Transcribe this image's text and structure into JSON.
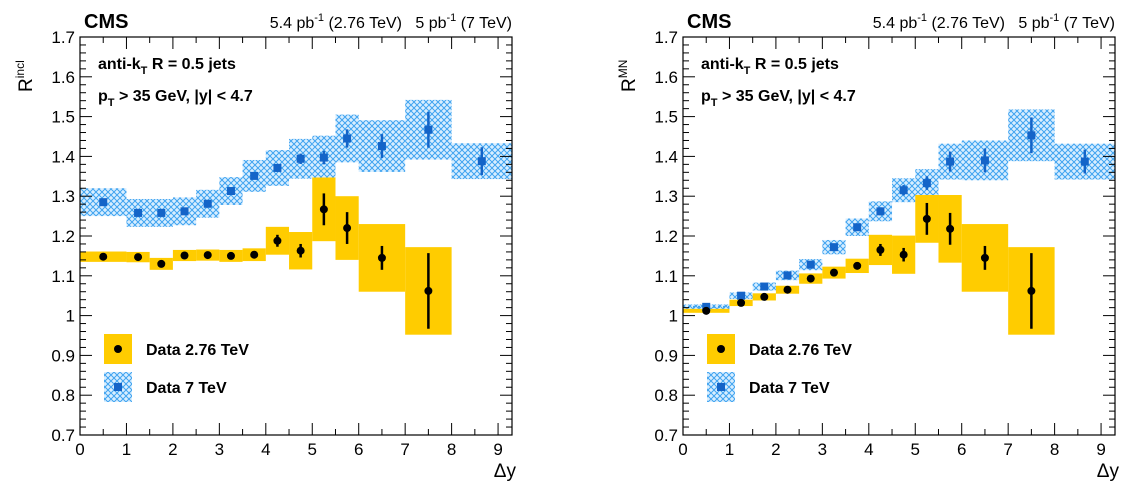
{
  "xlabel": "Δy",
  "colors": {
    "band_276": "#ffcc00",
    "band_7": "#9fd3ff",
    "marker_276": "#000000",
    "marker_7": "#1464c8"
  },
  "chart_data": [
    {
      "type": "scatter",
      "panel": "left",
      "experiment": "CMS",
      "lumi_276": "5.4 pb",
      "energy_276": "(2.76 TeV)",
      "lumi_7": "5 pb",
      "energy_7": "(7 TeV)",
      "lumi_sup": "-1",
      "ylabel_main": "R",
      "ylabel_sup": "incl",
      "annotation1_main": "anti-k",
      "annotation1_sub": "T",
      "annotation1_rest": " R = 0.5 jets",
      "annotation2_main": "p",
      "annotation2_sub": "T",
      "annotation2_rest": " > 35 GeV, |y| < 4.7",
      "xlim": [
        0,
        9.3
      ],
      "ylim": [
        0.7,
        1.7
      ],
      "xticks": [
        0,
        1,
        2,
        3,
        4,
        5,
        6,
        7,
        8,
        9
      ],
      "yticks": [
        0.7,
        0.8,
        0.9,
        1,
        1.1,
        1.2,
        1.3,
        1.4,
        1.5,
        1.6,
        1.7
      ],
      "legend": {
        "position": "bottom-left",
        "entries": [
          "Data 2.76 TeV",
          "Data 7 TeV"
        ]
      },
      "series": [
        {
          "name": "Data 2.76 TeV",
          "marker": "circle",
          "x": [
            0.5,
            1.25,
            1.75,
            2.25,
            2.75,
            3.25,
            3.75,
            4.25,
            4.75,
            5.25,
            5.75,
            6.5,
            7.5
          ],
          "xlo": [
            0,
            1,
            1.5,
            2,
            2.5,
            3,
            3.5,
            4,
            4.5,
            5,
            5.5,
            6,
            7
          ],
          "xhi": [
            1,
            1.5,
            2,
            2.5,
            3,
            3.5,
            4,
            4.5,
            5,
            5.5,
            6,
            7,
            8
          ],
          "y": [
            1.148,
            1.147,
            1.13,
            1.151,
            1.152,
            1.15,
            1.153,
            1.188,
            1.163,
            1.267,
            1.22,
            1.145,
            1.062
          ],
          "stat": [
            0.005,
            0.005,
            0.006,
            0.006,
            0.007,
            0.008,
            0.009,
            0.015,
            0.017,
            0.04,
            0.04,
            0.03,
            0.095
          ],
          "sys": [
            0.013,
            0.013,
            0.015,
            0.014,
            0.014,
            0.015,
            0.016,
            0.035,
            0.047,
            0.08,
            0.08,
            0.085,
            0.11
          ]
        },
        {
          "name": "Data 7 TeV",
          "marker": "square",
          "x": [
            0.5,
            1.25,
            1.75,
            2.25,
            2.75,
            3.25,
            3.75,
            4.25,
            4.75,
            5.25,
            5.75,
            6.5,
            7.5,
            8.65
          ],
          "xlo": [
            0,
            1,
            1.5,
            2,
            2.5,
            3,
            3.5,
            4,
            4.5,
            5,
            5.5,
            6,
            7,
            8
          ],
          "xhi": [
            1,
            1.5,
            2,
            2.5,
            3,
            3.5,
            4,
            4.5,
            5,
            5.5,
            6,
            7,
            8,
            9.3
          ],
          "y": [
            1.285,
            1.258,
            1.258,
            1.262,
            1.281,
            1.313,
            1.351,
            1.371,
            1.394,
            1.397,
            1.445,
            1.426,
            1.467,
            1.388
          ],
          "stat": [
            0.003,
            0.003,
            0.003,
            0.004,
            0.005,
            0.006,
            0.008,
            0.01,
            0.013,
            0.017,
            0.023,
            0.03,
            0.045,
            0.035
          ],
          "sys": [
            0.035,
            0.035,
            0.035,
            0.035,
            0.035,
            0.035,
            0.04,
            0.045,
            0.05,
            0.055,
            0.06,
            0.065,
            0.075,
            0.045
          ]
        }
      ]
    },
    {
      "type": "scatter",
      "panel": "right",
      "experiment": "CMS",
      "lumi_276": "5.4 pb",
      "energy_276": "(2.76 TeV)",
      "lumi_7": "5 pb",
      "energy_7": "(7 TeV)",
      "lumi_sup": "-1",
      "ylabel_main": "R",
      "ylabel_sup": "MN",
      "annotation1_main": "anti-k",
      "annotation1_sub": "T",
      "annotation1_rest": " R = 0.5 jets",
      "annotation2_main": "p",
      "annotation2_sub": "T",
      "annotation2_rest": " > 35 GeV, |y| < 4.7",
      "xlim": [
        0,
        9.3
      ],
      "ylim": [
        0.7,
        1.7
      ],
      "xticks": [
        0,
        1,
        2,
        3,
        4,
        5,
        6,
        7,
        8,
        9
      ],
      "yticks": [
        0.7,
        0.8,
        0.9,
        1,
        1.1,
        1.2,
        1.3,
        1.4,
        1.5,
        1.6,
        1.7
      ],
      "legend": {
        "position": "bottom-left",
        "entries": [
          "Data 2.76 TeV",
          "Data 7 TeV"
        ]
      },
      "series": [
        {
          "name": "Data 2.76 TeV",
          "marker": "circle",
          "x": [
            0.5,
            1.25,
            1.75,
            2.25,
            2.75,
            3.25,
            3.75,
            4.25,
            4.75,
            5.25,
            5.75,
            6.5,
            7.5
          ],
          "xlo": [
            0,
            1,
            1.5,
            2,
            2.5,
            3,
            3.5,
            4,
            4.5,
            5,
            5.5,
            6,
            7
          ],
          "xhi": [
            1,
            1.5,
            2,
            2.5,
            3,
            3.5,
            4,
            4.5,
            5,
            5.5,
            6,
            7,
            8
          ],
          "y": [
            1.012,
            1.032,
            1.047,
            1.065,
            1.093,
            1.108,
            1.125,
            1.165,
            1.153,
            1.243,
            1.218,
            1.145,
            1.062
          ],
          "stat": [
            0.003,
            0.004,
            0.005,
            0.005,
            0.006,
            0.007,
            0.009,
            0.015,
            0.017,
            0.04,
            0.04,
            0.03,
            0.095
          ],
          "sys": [
            0.005,
            0.008,
            0.009,
            0.01,
            0.013,
            0.015,
            0.018,
            0.038,
            0.048,
            0.06,
            0.085,
            0.085,
            0.11
          ]
        },
        {
          "name": "Data 7 TeV",
          "marker": "square",
          "x": [
            0.5,
            1.25,
            1.75,
            2.25,
            2.75,
            3.25,
            3.75,
            4.25,
            4.75,
            5.25,
            5.75,
            6.5,
            7.5,
            8.65
          ],
          "xlo": [
            0,
            1,
            1.5,
            2,
            2.5,
            3,
            3.5,
            4,
            4.5,
            5,
            5.5,
            6,
            7,
            8
          ],
          "xhi": [
            1,
            1.5,
            2,
            2.5,
            3,
            3.5,
            4,
            4.5,
            5,
            5.5,
            6,
            7,
            8,
            9.3
          ],
          "y": [
            1.022,
            1.05,
            1.073,
            1.101,
            1.128,
            1.172,
            1.222,
            1.262,
            1.315,
            1.333,
            1.387,
            1.39,
            1.453,
            1.387
          ],
          "stat": [
            0.002,
            0.003,
            0.003,
            0.004,
            0.005,
            0.006,
            0.007,
            0.01,
            0.013,
            0.017,
            0.025,
            0.03,
            0.045,
            0.03
          ],
          "sys": [
            0.006,
            0.008,
            0.01,
            0.012,
            0.014,
            0.018,
            0.022,
            0.025,
            0.03,
            0.035,
            0.045,
            0.05,
            0.065,
            0.045
          ]
        }
      ]
    }
  ]
}
